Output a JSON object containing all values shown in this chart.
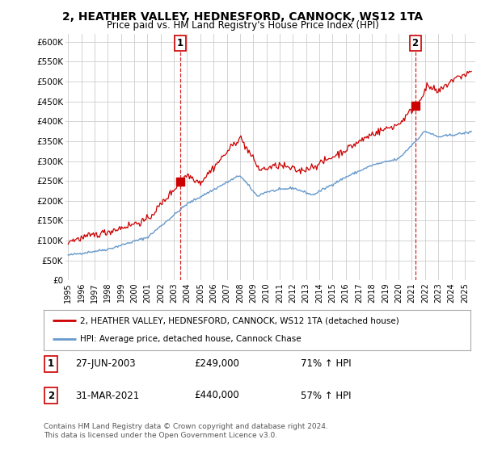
{
  "title": "2, HEATHER VALLEY, HEDNESFORD, CANNOCK, WS12 1TA",
  "subtitle": "Price paid vs. HM Land Registry's House Price Index (HPI)",
  "legend_line1": "2, HEATHER VALLEY, HEDNESFORD, CANNOCK, WS12 1TA (detached house)",
  "legend_line2": "HPI: Average price, detached house, Cannock Chase",
  "footnote1": "Contains HM Land Registry data © Crown copyright and database right 2024.",
  "footnote2": "This data is licensed under the Open Government Licence v3.0.",
  "marker1_label": "1",
  "marker1_date": "27-JUN-2003",
  "marker1_price": "£249,000",
  "marker1_hpi": "71% ↑ HPI",
  "marker1_x": 2003.49,
  "marker1_y": 249000,
  "marker2_label": "2",
  "marker2_date": "31-MAR-2021",
  "marker2_price": "£440,000",
  "marker2_hpi": "57% ↑ HPI",
  "marker2_x": 2021.25,
  "marker2_y": 440000,
  "property_color": "#cc0000",
  "hpi_color": "#6699cc",
  "dashed_color": "#cc0000",
  "bg_color": "#ffffff",
  "grid_color": "#cccccc",
  "ylim": [
    0,
    620000
  ],
  "xlim_start": 1994.8,
  "xlim_end": 2025.8,
  "yticks": [
    0,
    50000,
    100000,
    150000,
    200000,
    250000,
    300000,
    350000,
    400000,
    450000,
    500000,
    550000,
    600000
  ],
  "ytick_labels": [
    "£0",
    "£50K",
    "£100K",
    "£150K",
    "£200K",
    "£250K",
    "£300K",
    "£350K",
    "£400K",
    "£450K",
    "£500K",
    "£550K",
    "£600K"
  ],
  "xtick_years": [
    1995,
    1996,
    1997,
    1998,
    1999,
    2000,
    2001,
    2002,
    2003,
    2004,
    2005,
    2006,
    2007,
    2008,
    2009,
    2010,
    2011,
    2012,
    2013,
    2014,
    2015,
    2016,
    2017,
    2018,
    2019,
    2020,
    2021,
    2022,
    2023,
    2024,
    2025
  ]
}
